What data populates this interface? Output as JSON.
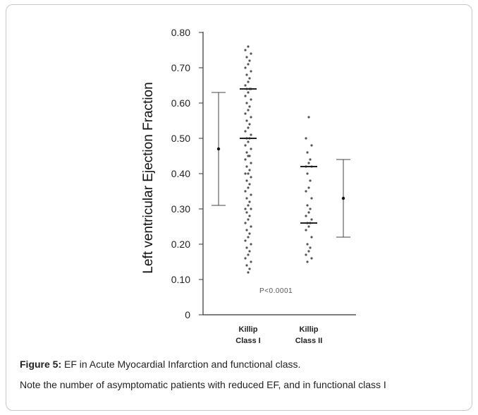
{
  "caption": {
    "label": "Figure 5:",
    "text": "EF in Acute Myocardial Infarction and functional class.",
    "note": "Note the number of asymptomatic patients with reduced EF, and in functional class I"
  },
  "chart_data": {
    "type": "scatter",
    "title": "",
    "ylabel": "Left ventricular Ejection Fraction",
    "ylim": [
      0,
      0.8
    ],
    "yticks": [
      "0.80",
      "0.70",
      "0.60",
      "0.50",
      "0.40",
      "0.30",
      "0.20",
      "0.10",
      "0"
    ],
    "annotation": "P<0.0001",
    "categories": [
      {
        "name_line1": "Killip",
        "name_line2": "Class I",
        "points": [
          0.76,
          0.75,
          0.74,
          0.73,
          0.72,
          0.71,
          0.7,
          0.69,
          0.68,
          0.67,
          0.66,
          0.65,
          0.64,
          0.64,
          0.64,
          0.63,
          0.62,
          0.61,
          0.6,
          0.59,
          0.58,
          0.57,
          0.56,
          0.55,
          0.54,
          0.53,
          0.52,
          0.51,
          0.5,
          0.5,
          0.49,
          0.48,
          0.47,
          0.46,
          0.45,
          0.45,
          0.44,
          0.43,
          0.42,
          0.41,
          0.4,
          0.4,
          0.39,
          0.38,
          0.37,
          0.36,
          0.35,
          0.34,
          0.33,
          0.32,
          0.31,
          0.3,
          0.3,
          0.29,
          0.28,
          0.27,
          0.26,
          0.25,
          0.24,
          0.23,
          0.22,
          0.21,
          0.2,
          0.19,
          0.18,
          0.17,
          0.16,
          0.15,
          0.14,
          0.13,
          0.12
        ],
        "bars": [
          0.64,
          0.5
        ]
      },
      {
        "name_line1": "Killip",
        "name_line2": "Class II",
        "points": [
          0.56,
          0.5,
          0.48,
          0.46,
          0.44,
          0.43,
          0.42,
          0.42,
          0.4,
          0.38,
          0.36,
          0.35,
          0.33,
          0.31,
          0.3,
          0.29,
          0.28,
          0.27,
          0.26,
          0.26,
          0.25,
          0.24,
          0.22,
          0.2,
          0.19,
          0.18,
          0.17,
          0.16,
          0.15
        ],
        "bars": [
          0.42,
          0.26
        ]
      }
    ],
    "error_bars": [
      {
        "side": "left",
        "mean": 0.47,
        "low": 0.31,
        "high": 0.63
      },
      {
        "side": "right",
        "mean": 0.33,
        "low": 0.22,
        "high": 0.44
      }
    ]
  }
}
